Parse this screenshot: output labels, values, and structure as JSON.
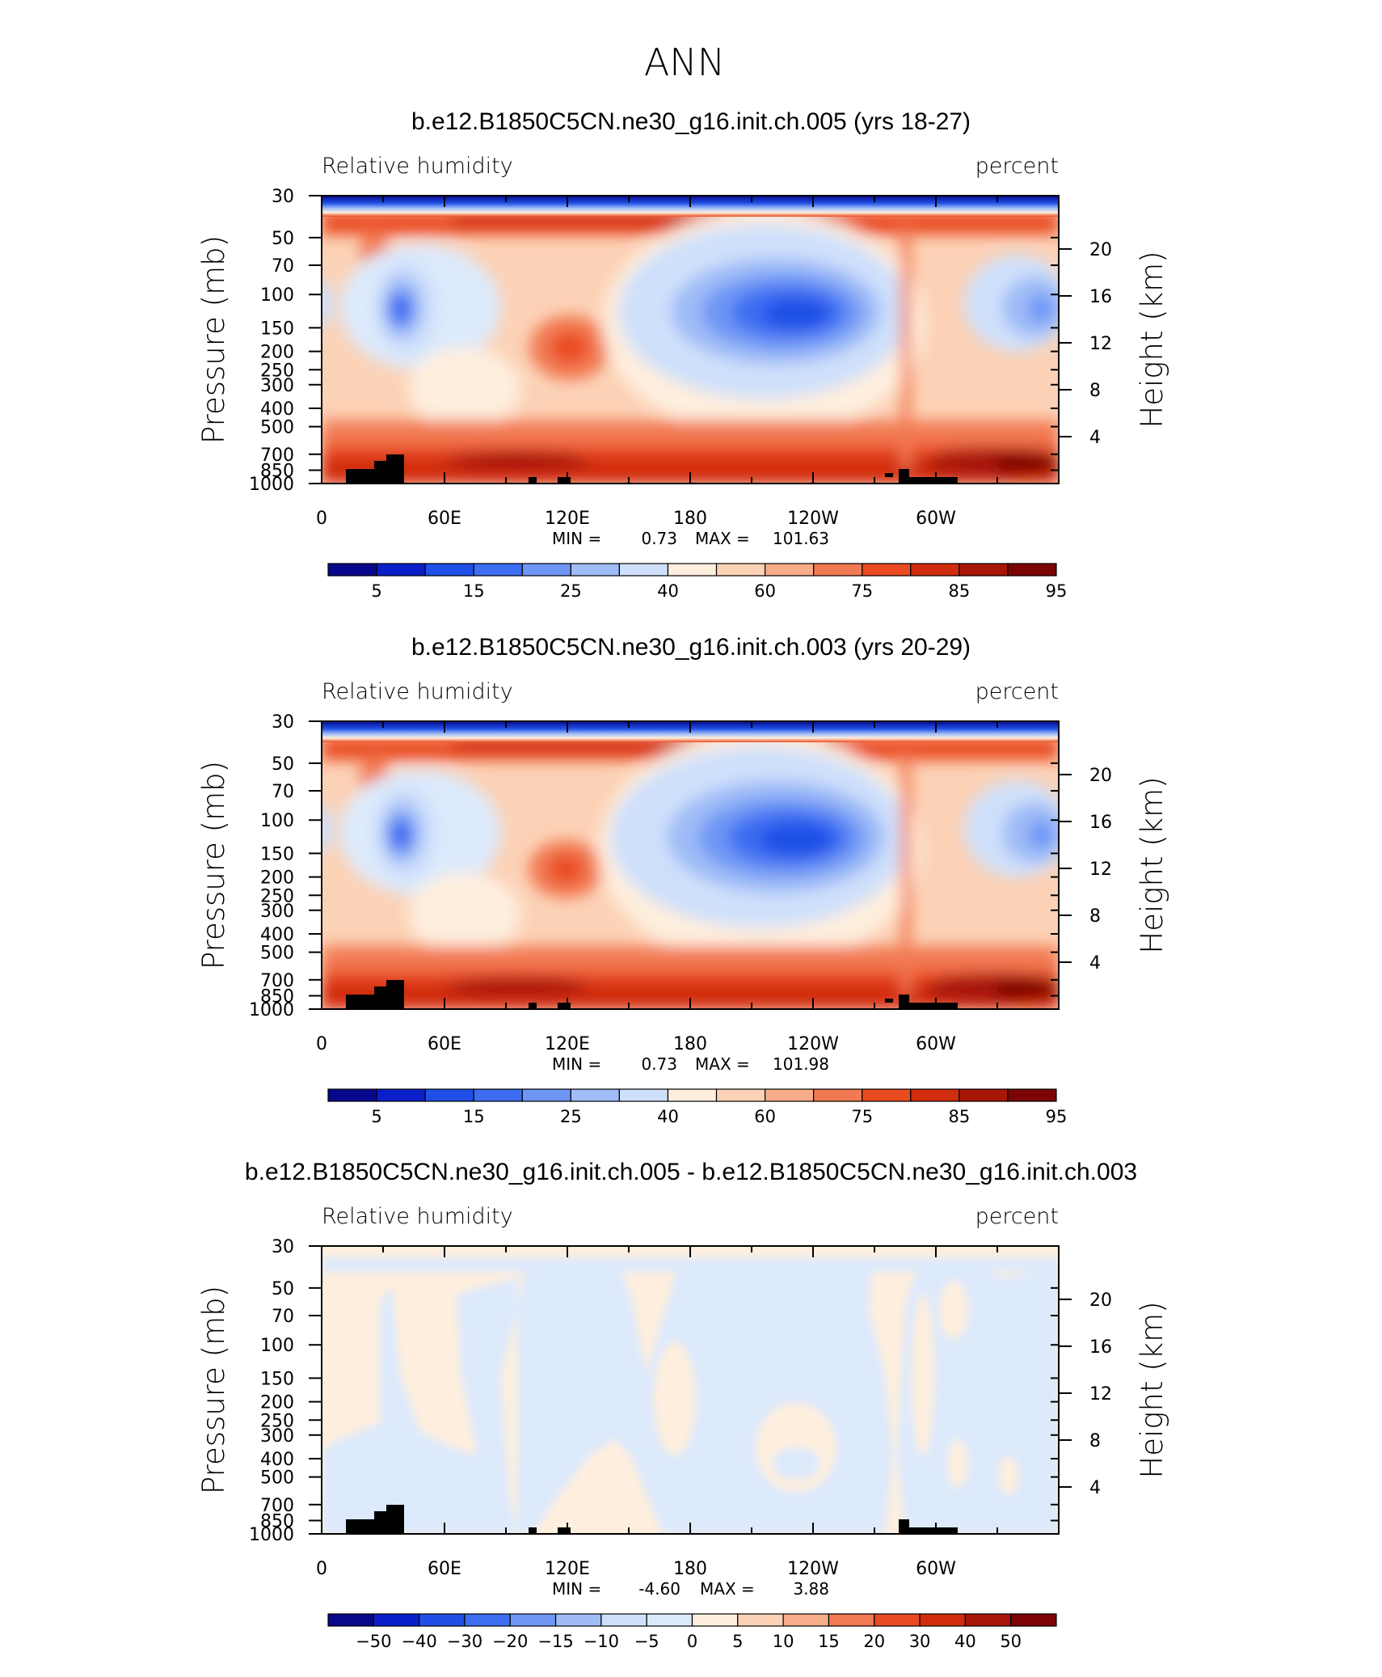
{
  "figure_title": "ANN",
  "chart_data": [
    {
      "type": "contour",
      "case_title": "b.e12.B1850C5CN.ne30_g16.init.ch.005 (yrs 18-27)",
      "left_label": "Relative humidity",
      "right_label": "percent",
      "ylabel": "Pressure (mb)",
      "ylabel_right": "Height (km)",
      "x_ticks": [
        "0",
        "60E",
        "120E",
        "180",
        "120W",
        "60W"
      ],
      "x_tick_lon": [
        0,
        60,
        120,
        180,
        240,
        300
      ],
      "xlim": [
        0,
        360
      ],
      "y_ticks": [
        "30",
        "50",
        "70",
        "100",
        "150",
        "200",
        "250",
        "300",
        "400",
        "500",
        "700",
        "850",
        "1000"
      ],
      "y_tick_p": [
        30,
        50,
        70,
        100,
        150,
        200,
        250,
        300,
        400,
        500,
        700,
        850,
        1000
      ],
      "y_scale": "log",
      "ylim": [
        30,
        1000
      ],
      "right_ticks": [
        "20",
        "16",
        "12",
        "8",
        "4"
      ],
      "right_tick_km": [
        20,
        16,
        12,
        8,
        4
      ],
      "min_label": "MIN =",
      "min_value": "0.73",
      "max_label": "MAX =",
      "max_value": "101.63",
      "colorbar": {
        "colors": [
          "#08088c",
          "#0a1fc9",
          "#1f4fe6",
          "#3d6df2",
          "#6e96f5",
          "#9fbcf7",
          "#cfe0fb",
          "#feeedd",
          "#fcd2b6",
          "#f7ad8a",
          "#f27a52",
          "#ea4b21",
          "#d12c0e",
          "#a81608",
          "#7d0404"
        ],
        "labels": [
          "5",
          "15",
          "25",
          "40",
          "60",
          "75",
          "85",
          "95"
        ],
        "label_after_box": [
          0,
          2,
          4,
          6,
          8,
          10,
          12,
          14
        ]
      }
    },
    {
      "type": "contour",
      "case_title": "b.e12.B1850C5CN.ne30_g16.init.ch.003 (yrs 20-29)",
      "left_label": "Relative humidity",
      "right_label": "percent",
      "ylabel": "Pressure (mb)",
      "ylabel_right": "Height (km)",
      "x_ticks": [
        "0",
        "60E",
        "120E",
        "180",
        "120W",
        "60W"
      ],
      "x_tick_lon": [
        0,
        60,
        120,
        180,
        240,
        300
      ],
      "xlim": [
        0,
        360
      ],
      "y_ticks": [
        "30",
        "50",
        "70",
        "100",
        "150",
        "200",
        "250",
        "300",
        "400",
        "500",
        "700",
        "850",
        "1000"
      ],
      "y_tick_p": [
        30,
        50,
        70,
        100,
        150,
        200,
        250,
        300,
        400,
        500,
        700,
        850,
        1000
      ],
      "y_scale": "log",
      "ylim": [
        30,
        1000
      ],
      "right_ticks": [
        "20",
        "16",
        "12",
        "8",
        "4"
      ],
      "right_tick_km": [
        20,
        16,
        12,
        8,
        4
      ],
      "min_label": "MIN =",
      "min_value": "0.73",
      "max_label": "MAX =",
      "max_value": "101.98",
      "colorbar": {
        "colors": [
          "#08088c",
          "#0a1fc9",
          "#1f4fe6",
          "#3d6df2",
          "#6e96f5",
          "#9fbcf7",
          "#cfe0fb",
          "#feeedd",
          "#fcd2b6",
          "#f7ad8a",
          "#f27a52",
          "#ea4b21",
          "#d12c0e",
          "#a81608",
          "#7d0404"
        ],
        "labels": [
          "5",
          "15",
          "25",
          "40",
          "60",
          "75",
          "85",
          "95"
        ],
        "label_after_box": [
          0,
          2,
          4,
          6,
          8,
          10,
          12,
          14
        ]
      }
    },
    {
      "type": "contour",
      "case_title": "b.e12.B1850C5CN.ne30_g16.init.ch.005 - b.e12.B1850C5CN.ne30_g16.init.ch.003",
      "left_label": "Relative humidity",
      "right_label": "percent",
      "ylabel": "Pressure (mb)",
      "ylabel_right": "Height (km)",
      "x_ticks": [
        "0",
        "60E",
        "120E",
        "180",
        "120W",
        "60W"
      ],
      "x_tick_lon": [
        0,
        60,
        120,
        180,
        240,
        300
      ],
      "xlim": [
        0,
        360
      ],
      "y_ticks": [
        "30",
        "50",
        "70",
        "100",
        "150",
        "200",
        "250",
        "300",
        "400",
        "500",
        "700",
        "850",
        "1000"
      ],
      "y_tick_p": [
        30,
        50,
        70,
        100,
        150,
        200,
        250,
        300,
        400,
        500,
        700,
        850,
        1000
      ],
      "y_scale": "log",
      "ylim": [
        30,
        1000
      ],
      "right_ticks": [
        "20",
        "16",
        "12",
        "8",
        "4"
      ],
      "right_tick_km": [
        20,
        16,
        12,
        8,
        4
      ],
      "min_label": "MIN =",
      "min_value": "-4.60",
      "max_label": "MAX =",
      "max_value": "3.88",
      "colorbar": {
        "colors": [
          "#08088c",
          "#0a1fc9",
          "#1f4fe6",
          "#3d6df2",
          "#6e96f5",
          "#9fbcf7",
          "#cfe0fb",
          "#ddeafc",
          "#feeedd",
          "#fcd2b6",
          "#f7ad8a",
          "#f27a52",
          "#ea4b21",
          "#d12c0e",
          "#a81608",
          "#7d0404"
        ],
        "labels": [
          "−50",
          "−40",
          "−30",
          "−20",
          "−15",
          "−10",
          "−5",
          "0",
          "5",
          "10",
          "15",
          "20",
          "30",
          "40",
          "50"
        ],
        "label_after_box": [
          0,
          1,
          2,
          3,
          4,
          5,
          6,
          7,
          8,
          9,
          10,
          11,
          12,
          13,
          14
        ]
      }
    }
  ]
}
